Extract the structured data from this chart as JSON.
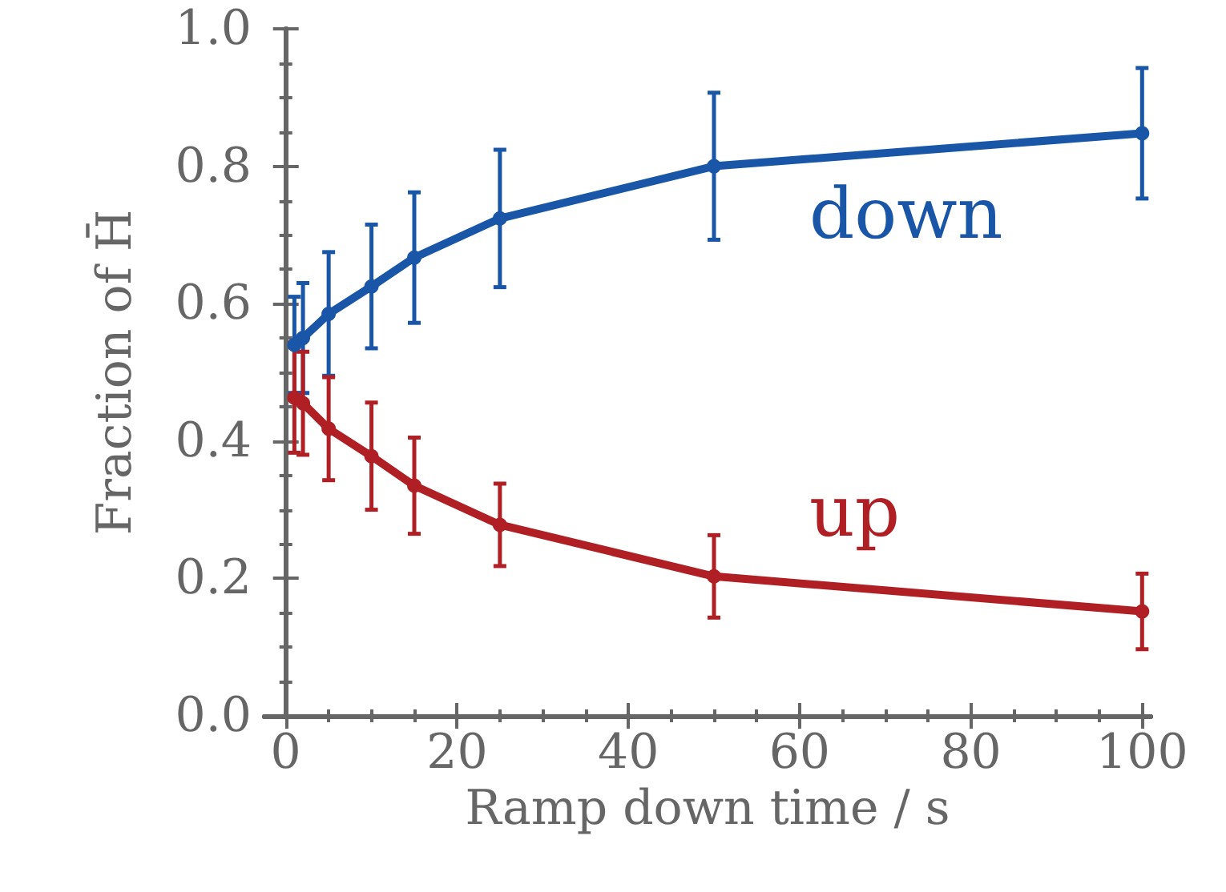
{
  "chart_data": {
    "type": "line",
    "xlabel": "Ramp down time / s",
    "ylabel": "Fraction of H̄",
    "x": [
      1,
      2,
      5,
      10,
      15,
      25,
      50,
      100
    ],
    "series": [
      {
        "name": "down",
        "color": "#1a56a8",
        "values": [
          0.54,
          0.55,
          0.585,
          0.625,
          0.667,
          0.724,
          0.8,
          0.848
        ],
        "errors": [
          0.07,
          0.08,
          0.09,
          0.09,
          0.095,
          0.1,
          0.107,
          0.095
        ]
      },
      {
        "name": "up",
        "color": "#b01f24",
        "values": [
          0.463,
          0.455,
          0.418,
          0.378,
          0.335,
          0.278,
          0.203,
          0.152
        ],
        "errors": [
          0.08,
          0.075,
          0.075,
          0.078,
          0.07,
          0.06,
          0.06,
          0.055
        ]
      }
    ],
    "xlim": [
      -2.5,
      101
    ],
    "xticks": [
      0,
      20,
      40,
      60,
      80,
      100
    ],
    "ylim": [
      0,
      1
    ],
    "yticks": [
      {
        "value": 0,
        "label": "0.0"
      },
      0.2,
      0.4,
      0.6,
      0.8,
      {
        "value": 1,
        "label": "1.0"
      }
    ],
    "marker": "circle",
    "line_style": "solid",
    "grid": false,
    "legend": false
  }
}
